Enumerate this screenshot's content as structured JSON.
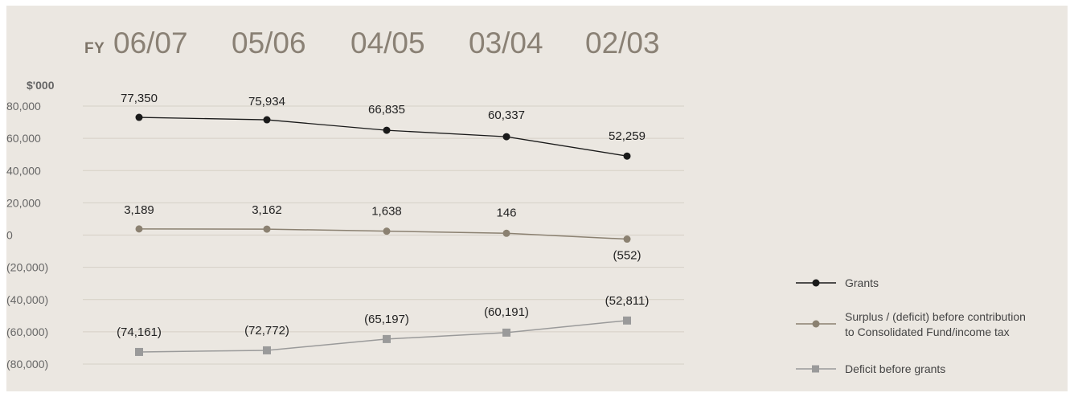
{
  "header": {
    "fy_prefix": "FY",
    "years": [
      "06/07",
      "05/06",
      "04/05",
      "03/04",
      "02/03"
    ]
  },
  "chart_data": {
    "type": "line",
    "ylabel": "$'000",
    "ylim": [
      -80000,
      80000
    ],
    "ytick_labels": [
      "80,000",
      "60,000",
      "40,000",
      "20,000",
      "0",
      "(20,000)",
      "(40,000)",
      "(60,000)",
      "(80,000)"
    ],
    "grid": true,
    "legend_position": "right",
    "categories": [
      "06/07",
      "05/06",
      "04/05",
      "03/04",
      "02/03"
    ],
    "series": [
      {
        "name": "Grants",
        "values": [
          77350,
          75934,
          66835,
          60337,
          52259
        ],
        "labels": [
          "77,350",
          "75,934",
          "66,835",
          "60,337",
          "52,259"
        ],
        "plotted": [
          73000,
          71500,
          65000,
          61000,
          49000
        ],
        "color": "#1a1a1a",
        "marker": "circle"
      },
      {
        "name": "Surplus / (deficit) before contribution to Consolidated Fund/income tax",
        "legend_lines": [
          "Surplus / (deficit) before contribution",
          "to Consolidated Fund/income tax"
        ],
        "values": [
          3189,
          3162,
          1638,
          146,
          -552
        ],
        "labels": [
          "3,189",
          "3,162",
          "1,638",
          "146",
          "(552)"
        ],
        "plotted": [
          3800,
          3700,
          2400,
          1100,
          -2500
        ],
        "color": "#8b8171",
        "marker": "circle"
      },
      {
        "name": "Deficit before grants",
        "values": [
          -74161,
          -72772,
          -65197,
          -60191,
          -52811
        ],
        "labels": [
          "(74,161)",
          "(72,772)",
          "(65,197)",
          "(60,191)",
          "(52,811)"
        ],
        "plotted": [
          -72500,
          -71500,
          -64500,
          -60500,
          -53000
        ],
        "color": "#9a9a9a",
        "marker": "square"
      }
    ]
  }
}
